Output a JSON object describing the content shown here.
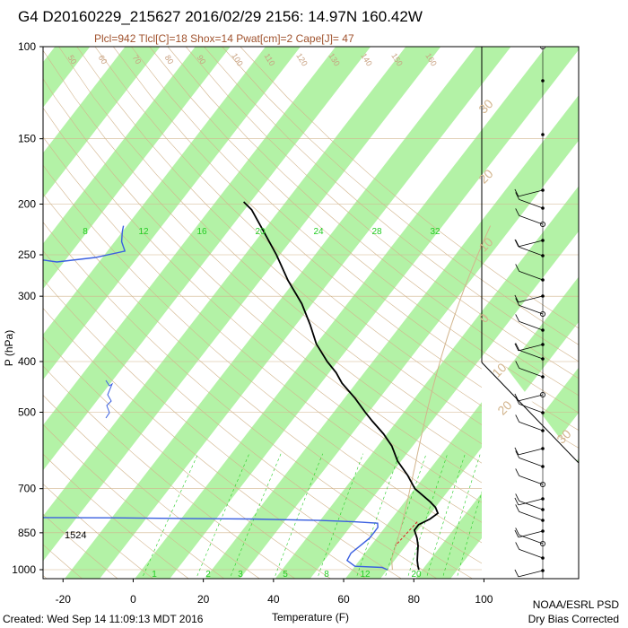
{
  "header": {
    "title": "G4 D20160229_215627 2016/02/29 2156: 14.97N 160.42W",
    "subtitle": "Plcl=942 Tlcl[C]=18 Shox=14 Pwat[cm]=2 Cape[J]= 47"
  },
  "footer": {
    "created": "Created: Wed Sep 14 11:09:13 MDT 2016",
    "org": "NOAA/ESRL PSD",
    "note": "Dry Bias Corrected"
  },
  "colors": {
    "band_green": "#b3f2a6",
    "temperature": "#000000",
    "dewpoint": "#3a5fe0",
    "dry_adiabat": "#d2b48c",
    "mixing_ratio": "#22cc22",
    "parcel": "#d2b48c",
    "virtual": "#dd2222"
  },
  "chart_data": {
    "type": "line",
    "title": "G4 D20160229_215627 2016/02/29 2156: 14.97N 160.42W",
    "xlabel": "Temperature (F)",
    "ylabel": "P (hPa)",
    "x_scale": "skew-T",
    "y_scale": "log",
    "xlim": [
      -28,
      112
    ],
    "ylim": [
      1050,
      100
    ],
    "x_ticks": [
      "-20",
      "0",
      "20",
      "40",
      "60",
      "80",
      "100"
    ],
    "y_ticks": [
      "100",
      "150",
      "200",
      "250",
      "300",
      "400",
      "500",
      "700",
      "850",
      "1000"
    ],
    "mixing_ratio_labels": [
      "8",
      "12",
      "16",
      "20",
      "24",
      "28",
      "32"
    ],
    "mixing_ratio_bottom_labels": [
      "1",
      "2",
      "3",
      "5",
      "8",
      "12",
      "20"
    ],
    "dry_adiabat_labels": [
      "50",
      "60",
      "70",
      "80",
      "90",
      "100",
      "110",
      "120",
      "130",
      "140",
      "150",
      "160"
    ],
    "theta_labels": [
      "30",
      "20",
      "10",
      "0",
      "10",
      "20",
      "30"
    ],
    "annotation_height": "1524",
    "series": [
      {
        "name": "Temperature",
        "points": [
          {
            "p": 1000,
            "t": 79
          },
          {
            "p": 985,
            "t": 78
          },
          {
            "p": 960,
            "t": 76.5
          },
          {
            "p": 930,
            "t": 75
          },
          {
            "p": 900,
            "t": 73.5
          },
          {
            "p": 870,
            "t": 71.5
          },
          {
            "p": 840,
            "t": 69
          },
          {
            "p": 820,
            "t": 69
          },
          {
            "p": 800,
            "t": 71
          },
          {
            "p": 780,
            "t": 72
          },
          {
            "p": 760,
            "t": 70
          },
          {
            "p": 740,
            "t": 67
          },
          {
            "p": 700,
            "t": 60
          },
          {
            "p": 660,
            "t": 55
          },
          {
            "p": 620,
            "t": 49
          },
          {
            "p": 580,
            "t": 44
          },
          {
            "p": 550,
            "t": 39
          },
          {
            "p": 520,
            "t": 33
          },
          {
            "p": 500,
            "t": 29
          },
          {
            "p": 470,
            "t": 23
          },
          {
            "p": 440,
            "t": 16
          },
          {
            "p": 420,
            "t": 12
          },
          {
            "p": 400,
            "t": 7
          },
          {
            "p": 370,
            "t": 0
          },
          {
            "p": 340,
            "t": -6
          },
          {
            "p": 310,
            "t": -13
          },
          {
            "p": 280,
            "t": -22
          },
          {
            "p": 250,
            "t": -31
          },
          {
            "p": 225,
            "t": -40
          },
          {
            "p": 205,
            "t": -48
          },
          {
            "p": 198,
            "t": -52
          }
        ]
      },
      {
        "name": "Dewpoint",
        "points": [
          {
            "p": 1000,
            "t": 70
          },
          {
            "p": 990,
            "t": 68
          },
          {
            "p": 985,
            "t": 60
          },
          {
            "p": 960,
            "t": 56.5
          },
          {
            "p": 930,
            "t": 56
          },
          {
            "p": 900,
            "t": 57
          },
          {
            "p": 870,
            "t": 58
          },
          {
            "p": 850,
            "t": 58
          },
          {
            "p": 830,
            "t": 58
          },
          {
            "p": 815,
            "t": 57
          },
          {
            "p": 810,
            "t": 50
          },
          {
            "p": 805,
            "t": 40
          },
          {
            "p": 800,
            "t": 20
          },
          {
            "p": 798,
            "t": 0
          },
          {
            "p": 796,
            "t": -20
          },
          {
            "p": 795,
            "t": -40
          },
          {
            "p": 794,
            "t": -60
          },
          {
            "p": 255,
            "t": -98
          },
          {
            "p": 258,
            "t": -92
          },
          {
            "p": 253,
            "t": -82
          },
          {
            "p": 246,
            "t": -75
          },
          {
            "p": 236,
            "t": -78
          },
          {
            "p": 226,
            "t": -80
          },
          {
            "p": 220,
            "t": -81
          }
        ]
      }
    ]
  }
}
